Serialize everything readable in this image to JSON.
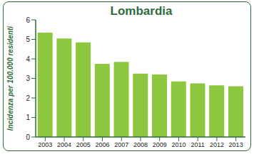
{
  "chart_data": {
    "type": "bar",
    "title": "Lombardia",
    "y_label": "Incidenza per 100.000 residenti",
    "categories": [
      "2003",
      "2004",
      "2005",
      "2006",
      "2007",
      "2008",
      "2009",
      "2010",
      "2011",
      "2012",
      "2013"
    ],
    "values": [
      5.35,
      5.05,
      4.85,
      3.75,
      3.85,
      3.25,
      3.2,
      2.85,
      2.75,
      2.65,
      2.6
    ],
    "color": "#8dc63f",
    "ylim": [
      0,
      6
    ],
    "yticks": [
      0,
      1,
      2,
      3,
      4,
      5,
      6
    ],
    "grid": false
  }
}
